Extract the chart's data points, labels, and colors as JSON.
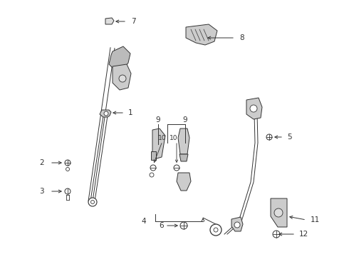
{
  "bg_color": "#ffffff",
  "fig_width": 4.9,
  "fig_height": 3.6,
  "dpi": 100,
  "line_color": "#333333",
  "part_color": "#cccccc"
}
